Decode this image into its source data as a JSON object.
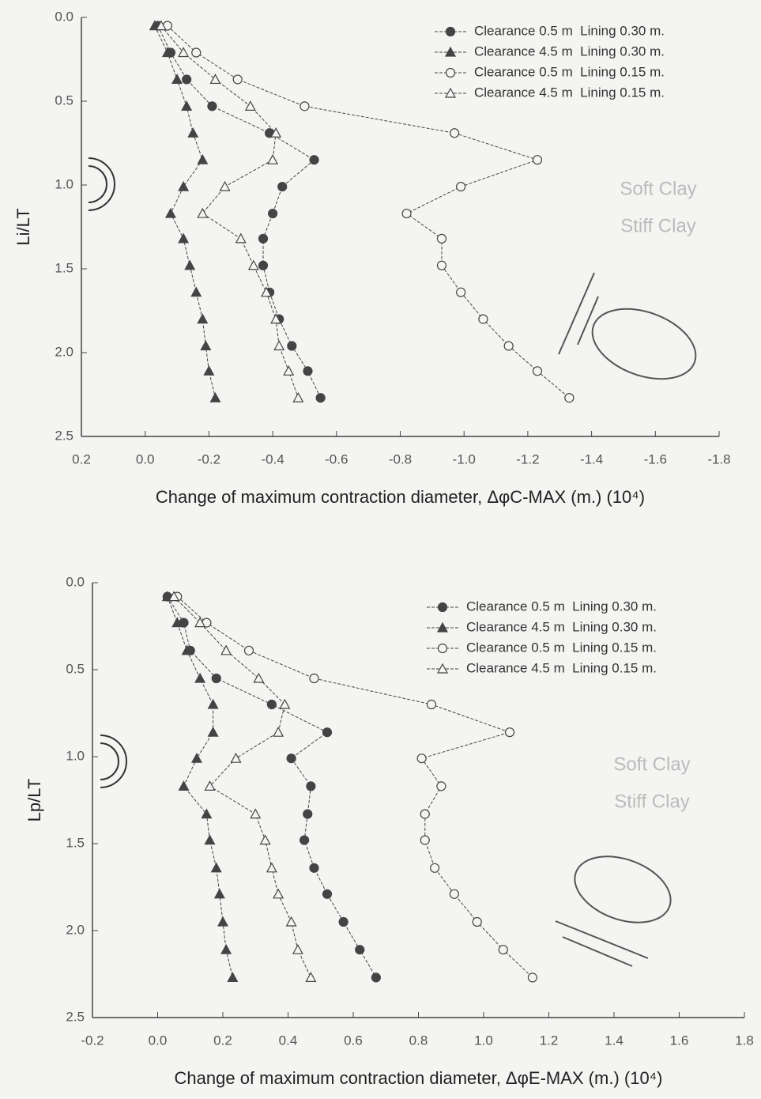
{
  "chart_data": [
    {
      "type": "line",
      "x_label": "Change of maximum contraction diameter, ΔφC-MAX (m.) (10⁴)",
      "y_label": "Li/LT",
      "xlim": [
        0.2,
        -1.8
      ],
      "xticks": [
        0.2,
        {
          "value": 0,
          "label": "0.0"
        },
        -0.2,
        -0.4,
        -0.6,
        -0.8,
        {
          "value": -1,
          "label": "-1.0"
        },
        -1.2,
        -1.4,
        -1.6,
        -1.8
      ],
      "ylim": [
        0,
        2.5
      ],
      "yticks": [
        {
          "value": 0,
          "label": "0.0"
        },
        0.5,
        {
          "value": 1,
          "label": "1.0"
        },
        1.5,
        {
          "value": 2,
          "label": "2.0"
        },
        2.5
      ],
      "y": [
        0.05,
        0.21,
        0.37,
        0.53,
        0.69,
        0.85,
        1.01,
        1.17,
        1.32,
        1.48,
        1.64,
        1.8,
        1.96,
        2.11,
        2.27
      ],
      "legend": "upper right",
      "annotations": [
        "Soft Clay",
        "Stiff Clay"
      ],
      "series": [
        {
          "name": "Clearance 0.5 m  Lining 0.30 m.",
          "color": "#444444",
          "marker": "circle",
          "fill": "filled",
          "values": [
            -0.04,
            -0.08,
            -0.13,
            -0.21,
            -0.39,
            -0.53,
            -0.43,
            -0.4,
            -0.37,
            -0.37,
            -0.39,
            -0.42,
            -0.46,
            -0.51,
            -0.55
          ]
        },
        {
          "name": "Clearance 4.5 m  Lining 0.30 m.",
          "color": "#444444",
          "marker": "triangle",
          "fill": "filled",
          "values": [
            -0.03,
            -0.07,
            -0.1,
            -0.13,
            -0.15,
            -0.18,
            -0.12,
            -0.08,
            -0.12,
            -0.14,
            -0.16,
            -0.18,
            -0.19,
            -0.2,
            -0.22
          ]
        },
        {
          "name": "Clearance 0.5 m  Lining 0.15 m.",
          "color": "#444444",
          "marker": "circle",
          "fill": "open",
          "values": [
            -0.07,
            -0.16,
            -0.29,
            -0.5,
            -0.97,
            -1.23,
            -0.99,
            -0.82,
            -0.93,
            -0.93,
            -0.99,
            -1.06,
            -1.14,
            -1.23,
            -1.33
          ]
        },
        {
          "name": "Clearance 4.5 m  Lining 0.15 m.",
          "color": "#444444",
          "marker": "triangle",
          "fill": "open",
          "values": [
            -0.05,
            -0.12,
            -0.22,
            -0.33,
            -0.41,
            -0.4,
            -0.25,
            -0.18,
            -0.3,
            -0.34,
            -0.38,
            -0.41,
            -0.42,
            -0.45,
            -0.48
          ]
        }
      ]
    },
    {
      "type": "line",
      "x_label": "Change of maximum contraction diameter, ΔφE-MAX (m.) (10⁴)",
      "y_label": "Lp/LT",
      "xlim": [
        -0.2,
        1.8
      ],
      "xticks": [
        -0.2,
        {
          "value": 0,
          "label": "0.0"
        },
        0.2,
        0.4,
        0.6,
        0.8,
        {
          "value": 1,
          "label": "1.0"
        },
        1.2,
        1.4,
        1.6,
        1.8
      ],
      "ylim": [
        0,
        2.5
      ],
      "yticks": [
        {
          "value": 0,
          "label": "0.0"
        },
        0.5,
        {
          "value": 1,
          "label": "1.0"
        },
        1.5,
        {
          "value": 2,
          "label": "2.0"
        },
        2.5
      ],
      "y": [
        0.08,
        0.23,
        0.39,
        0.55,
        0.7,
        0.86,
        1.01,
        1.17,
        1.33,
        1.48,
        1.64,
        1.79,
        1.95,
        2.11,
        2.27
      ],
      "legend": "upper right",
      "annotations": [
        "Soft Clay",
        "Stiff Clay"
      ],
      "series": [
        {
          "name": "Clearance 0.5 m  Lining 0.30 m.",
          "color": "#444444",
          "marker": "circle",
          "fill": "filled",
          "values": [
            0.03,
            0.08,
            0.1,
            0.18,
            0.35,
            0.52,
            0.41,
            0.47,
            0.46,
            0.45,
            0.48,
            0.52,
            0.57,
            0.62,
            0.67
          ]
        },
        {
          "name": "Clearance 4.5 m  Lining 0.30 m.",
          "color": "#444444",
          "marker": "triangle",
          "fill": "filled",
          "values": [
            0.03,
            0.06,
            0.09,
            0.13,
            0.17,
            0.17,
            0.12,
            0.08,
            0.15,
            0.16,
            0.18,
            0.19,
            0.2,
            0.21,
            0.23
          ]
        },
        {
          "name": "Clearance 0.5 m  Lining 0.15 m.",
          "color": "#444444",
          "marker": "circle",
          "fill": "open",
          "values": [
            0.06,
            0.15,
            0.28,
            0.48,
            0.84,
            1.08,
            0.81,
            0.87,
            0.82,
            0.82,
            0.85,
            0.91,
            0.98,
            1.06,
            1.15
          ]
        },
        {
          "name": "Clearance 4.5 m  Lining 0.15 m.",
          "color": "#444444",
          "marker": "triangle",
          "fill": "open",
          "values": [
            0.05,
            0.13,
            0.21,
            0.31,
            0.39,
            0.37,
            0.24,
            0.16,
            0.3,
            0.33,
            0.35,
            0.37,
            0.41,
            0.43,
            0.47
          ]
        }
      ]
    }
  ]
}
